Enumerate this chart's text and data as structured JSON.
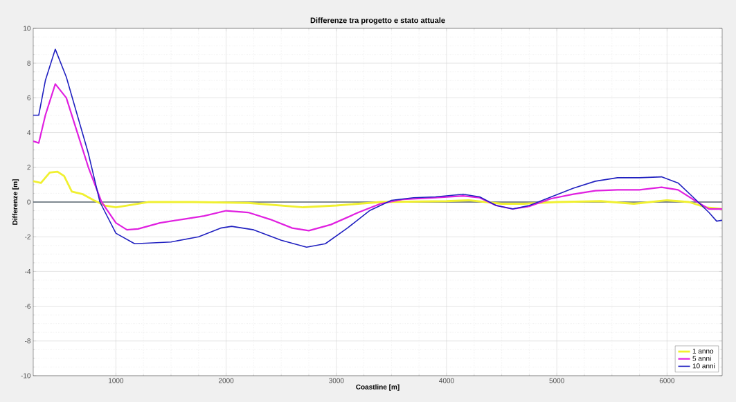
{
  "chart_data": {
    "type": "line",
    "title": "Differenze tra progetto e stato attuale",
    "xlabel": "Coastline [m]",
    "ylabel": "Differenze [m]",
    "xlim": [
      250,
      6500
    ],
    "ylim": [
      -10,
      10
    ],
    "xticks": [
      1000,
      2000,
      3000,
      4000,
      5000,
      6000
    ],
    "yticks": [
      -10,
      -8,
      -6,
      -4,
      -2,
      0,
      2,
      4,
      6,
      8,
      10
    ],
    "grid": true,
    "legend": "bottom right",
    "marker": "none",
    "line_style": "solid",
    "ref_lines": [
      {
        "axis": "y",
        "value": 0,
        "color": "#5a6670"
      }
    ],
    "series": [
      {
        "name": "1 anno",
        "color": "#f0f030",
        "x": [
          250,
          320,
          400,
          470,
          530,
          600,
          700,
          800,
          900,
          1000,
          1100,
          1300,
          1700,
          2200,
          2700,
          3000,
          3400,
          4000,
          4200,
          4500,
          4700,
          5000,
          5400,
          5700,
          6000,
          6200,
          6350,
          6500
        ],
        "values": [
          1.2,
          1.1,
          1.7,
          1.75,
          1.5,
          0.6,
          0.45,
          0.1,
          -0.2,
          -0.3,
          -0.2,
          0,
          0,
          -0.05,
          -0.3,
          -0.2,
          0,
          0.05,
          0.1,
          -0.1,
          -0.1,
          0,
          0.05,
          -0.1,
          0.1,
          0,
          -0.3,
          -0.4
        ]
      },
      {
        "name": "5 anni",
        "color": "#e020e0",
        "x": [
          250,
          300,
          360,
          450,
          550,
          650,
          750,
          870,
          1000,
          1100,
          1200,
          1400,
          1600,
          1800,
          2000,
          2200,
          2400,
          2600,
          2750,
          2950,
          3200,
          3400,
          3600,
          3900,
          4150,
          4300,
          4450,
          4600,
          4750,
          4950,
          5150,
          5350,
          5550,
          5750,
          5950,
          6100,
          6250,
          6380,
          6500
        ],
        "values": [
          3.5,
          3.4,
          5,
          6.8,
          6.0,
          4.0,
          2.0,
          0,
          -1.2,
          -1.6,
          -1.55,
          -1.2,
          -1.0,
          -0.8,
          -0.5,
          -0.6,
          -1.0,
          -1.5,
          -1.65,
          -1.3,
          -0.6,
          -0.1,
          0.15,
          0.25,
          0.35,
          0.25,
          -0.2,
          -0.4,
          -0.25,
          0.2,
          0.45,
          0.65,
          0.7,
          0.7,
          0.85,
          0.7,
          0.1,
          -0.4,
          -0.4
        ]
      },
      {
        "name": "10 anni",
        "color": "#2020c0",
        "x": [
          250,
          300,
          360,
          450,
          550,
          650,
          750,
          855,
          1000,
          1170,
          1500,
          1750,
          1950,
          2050,
          2250,
          2500,
          2730,
          2900,
          3100,
          3300,
          3500,
          3700,
          3900,
          4150,
          4300,
          4450,
          4600,
          4750,
          4950,
          5150,
          5350,
          5550,
          5750,
          5950,
          6100,
          6250,
          6380,
          6450,
          6500
        ],
        "values": [
          5.0,
          5.0,
          7.0,
          8.8,
          7.2,
          5.0,
          2.8,
          0,
          -1.8,
          -2.4,
          -2.3,
          -2.0,
          -1.5,
          -1.4,
          -1.6,
          -2.2,
          -2.6,
          -2.4,
          -1.5,
          -0.5,
          0.1,
          0.25,
          0.3,
          0.45,
          0.3,
          -0.2,
          -0.4,
          -0.2,
          0.3,
          0.8,
          1.2,
          1.4,
          1.4,
          1.45,
          1.1,
          0.2,
          -0.6,
          -1.1,
          -1.05
        ]
      }
    ]
  }
}
